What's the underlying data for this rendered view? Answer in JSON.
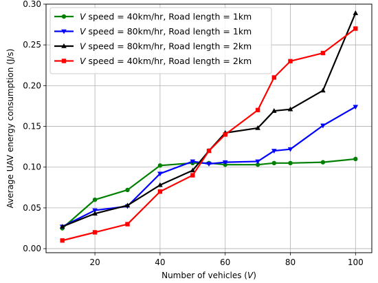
{
  "chart_data": {
    "type": "line",
    "xlabel": "Number of vehicles (V)",
    "xlabel_parts": {
      "before": "Number of vehicles (",
      "var": "V",
      "after": ")"
    },
    "ylabel": "Average UAV energy consumption (J/s)",
    "xlim": [
      5,
      105
    ],
    "ylim": [
      -0.005,
      0.3
    ],
    "xticks": [
      20,
      40,
      60,
      80,
      100
    ],
    "xtick_labels": [
      "20",
      "40",
      "60",
      "80",
      "100"
    ],
    "yticks": [
      0.0,
      0.05,
      0.1,
      0.15,
      0.2,
      0.25,
      0.3
    ],
    "ytick_labels": [
      "0.00",
      "0.05",
      "0.10",
      "0.15",
      "0.20",
      "0.25",
      "0.30"
    ],
    "grid": true,
    "legend_position": "top-left",
    "series": [
      {
        "name": "V speed = 40km/hr, Road length = 1km",
        "label_var": "V",
        "label_rest": " speed = 40km/hr, Road length = 1km",
        "color": "#008000",
        "marker": "circle",
        "x": [
          10,
          20,
          30,
          40,
          50,
          55,
          60,
          70,
          75,
          80,
          90,
          100
        ],
        "y": [
          0.025,
          0.06,
          0.072,
          0.102,
          0.105,
          0.105,
          0.103,
          0.103,
          0.105,
          0.105,
          0.106,
          0.11
        ]
      },
      {
        "name": "V speed = 80km/hr, Road length = 1km",
        "label_var": "V",
        "label_rest": " speed = 80km/hr, Road length = 1km",
        "color": "#0000ff",
        "marker": "triangle-down",
        "x": [
          10,
          20,
          30,
          40,
          50,
          55,
          60,
          70,
          75,
          80,
          90,
          100
        ],
        "y": [
          0.027,
          0.047,
          0.052,
          0.092,
          0.107,
          0.104,
          0.106,
          0.107,
          0.12,
          0.122,
          0.151,
          0.174
        ]
      },
      {
        "name": "V speed = 80km/hr, Road length = 2km",
        "label_var": "V",
        "label_rest": " speed = 80km/hr, Road length = 2km",
        "color": "#000000",
        "marker": "triangle-up",
        "x": [
          10,
          20,
          30,
          40,
          50,
          55,
          60,
          70,
          75,
          80,
          90,
          100
        ],
        "y": [
          0.027,
          0.043,
          0.053,
          0.078,
          0.096,
          0.12,
          0.142,
          0.148,
          0.169,
          0.171,
          0.194,
          0.289
        ]
      },
      {
        "name": "V speed = 40km/hr, Road length = 2km",
        "label_var": "V",
        "label_rest": " speed = 40km/hr, Road length = 2km",
        "color": "#ff0000",
        "marker": "square",
        "x": [
          10,
          20,
          30,
          40,
          50,
          55,
          60,
          70,
          75,
          80,
          90,
          100
        ],
        "y": [
          0.01,
          0.02,
          0.03,
          0.07,
          0.09,
          0.12,
          0.14,
          0.17,
          0.21,
          0.23,
          0.24,
          0.27
        ]
      }
    ]
  }
}
